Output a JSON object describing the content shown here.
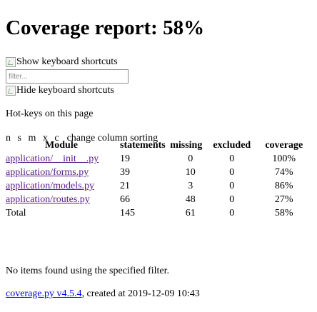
{
  "page": {
    "title": "Coverage report: 58%",
    "show_shortcuts": "Show keyboard shortcuts",
    "filter_placeholder": "filter...",
    "hide_shortcuts": "Hide keyboard shortcuts",
    "hotkeys_heading": "Hot-keys on this page",
    "hotkeys_keys": "n s m x c",
    "hotkeys_desc": "change column sorting",
    "no_items": "No items found using the specified filter.",
    "footer_link": "coverage.py v4.5.4",
    "footer_text": ", created at 2019-12-09 10:43"
  },
  "table": {
    "headers": [
      "Module",
      "statements",
      "missing",
      "excluded",
      "coverage"
    ],
    "rows": [
      {
        "module": "application/__init__.py",
        "statements": "19",
        "missing": "0",
        "excluded": "0",
        "coverage": "100%"
      },
      {
        "module": "application/forms.py",
        "statements": "39",
        "missing": "10",
        "excluded": "0",
        "coverage": "74%"
      },
      {
        "module": "application/models.py",
        "statements": "21",
        "missing": "3",
        "excluded": "0",
        "coverage": "86%"
      },
      {
        "module": "application/routes.py",
        "statements": "66",
        "missing": "48",
        "excluded": "0",
        "coverage": "27%"
      }
    ],
    "total": {
      "module": "Total",
      "statements": "145",
      "missing": "61",
      "excluded": "0",
      "coverage": "58%"
    }
  },
  "icons": {
    "shortcut_image": "broken-image-icon"
  }
}
